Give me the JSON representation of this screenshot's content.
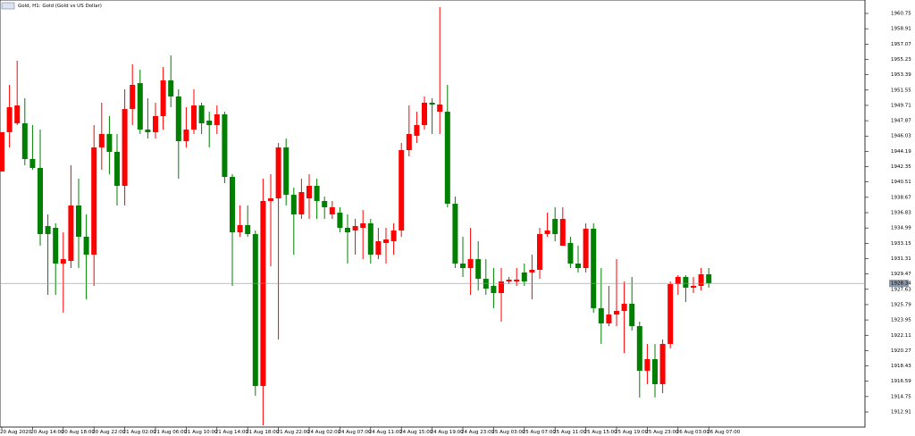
{
  "chart_data": {
    "type": "candlestick",
    "title": "Gold, H1:  Gold (Gold vs US Dollar)",
    "categories": [
      "20 Aug 2020",
      null,
      null,
      null,
      "20 Aug 14:00",
      null,
      null,
      null,
      "20 Aug 18:00",
      null,
      null,
      null,
      "20 Aug 22:00",
      null,
      null,
      null,
      "21 Aug 02:00",
      null,
      null,
      null,
      "21 Aug 06:00",
      null,
      null,
      null,
      "21 Aug 10:00",
      null,
      null,
      null,
      "21 Aug 14:00",
      null,
      null,
      null,
      "21 Aug 18:00",
      null,
      null,
      null,
      "21 Aug 22:00",
      null,
      null,
      null,
      "24 Aug 02:00",
      null,
      null,
      null,
      "24 Aug 07:00",
      null,
      null,
      null,
      "24 Aug 11:00",
      null,
      null,
      null,
      "24 Aug 15:00",
      null,
      null,
      null,
      "24 Aug 19:00",
      null,
      null,
      null,
      "24 Aug 23:00",
      null,
      null,
      null,
      "25 Aug 03:00",
      null,
      null,
      null,
      "25 Aug 07:00",
      null,
      null,
      null,
      "25 Aug 11:00",
      null,
      null,
      null,
      "25 Aug 15:00",
      null,
      null,
      null,
      "25 Aug 19:00",
      null,
      null,
      null,
      "25 Aug 23:00",
      null,
      null,
      null,
      "26 Aug 03:00",
      null,
      null,
      null,
      "26 Aug 07:00"
    ],
    "open": [
      1941.77,
      1946.49,
      1947.56,
      1947.56,
      1943.27,
      1942.2,
      1935.22,
      1935.01,
      1930.72,
      1931.04,
      1937.69,
      1933.94,
      1931.79,
      1944.66,
      1946.27,
      1944.13,
      1940.05,
      1949.27,
      1952.38,
      1946.81,
      1946.49,
      1948.42,
      1952.71,
      1950.78,
      1945.41,
      1946.81,
      1949.7,
      1947.88,
      1947.34,
      1948.63,
      1941.12,
      1934.47,
      1935.33,
      1934.26,
      1916.02,
      1938.23,
      1938.55,
      1944.66,
      1938.98,
      1936.62,
      1938.55,
      1940.05,
      1938.23,
      1936.62,
      1936.83,
      1935.01,
      1934.69,
      1935.01,
      1935.55,
      1931.79,
      1933.19,
      1933.4,
      1934.69,
      1944.34,
      1946.06,
      1947.34,
      1950.03,
      1948.95,
      1948.95,
      1937.9,
      1930.72,
      1930.18,
      1931.25,
      1928.89,
      1928.04,
      1927.18,
      1928.57,
      1928.57,
      1929.65,
      1929.65,
      1929.97,
      1934.26,
      1936.08,
      1932.86,
      1933.19,
      1930.72,
      1930.18,
      1934.9,
      1925.36,
      1923.53,
      1924.6,
      1925.03,
      1925.89,
      1923.21,
      1917.85,
      1919.24,
      1916.24,
      1921.07,
      1928.25,
      1929.11,
      1927.82,
      1928.04,
      1929.43
    ],
    "high": [
      1946.49,
      1952.17,
      1955.07,
      1950.56,
      1947.34,
      1946.81,
      1936.62,
      1935.55,
      1934.47,
      1942.52,
      1940.91,
      1936.62,
      1947.34,
      1950.03,
      1948.42,
      1946.27,
      1951.63,
      1954.64,
      1953.99,
      1950.56,
      1950.03,
      1954.32,
      1955.71,
      1951.63,
      1949.49,
      1951.63,
      1950.03,
      1948.95,
      1949.7,
      1948.95,
      1941.44,
      1937.69,
      1937.69,
      1934.69,
      1940.91,
      1941.44,
      1945.2,
      1945.74,
      1939.84,
      1940.91,
      1941.44,
      1940.91,
      1938.76,
      1938.23,
      1937.48,
      1936.62,
      1936.08,
      1937.15,
      1936.08,
      1935.01,
      1935.01,
      1935.55,
      1945.2,
      1949.7,
      1948.95,
      1950.78,
      1950.56,
      1961.5,
      1952.17,
      1938.76,
      1933.94,
      1935.01,
      1933.4,
      1931.25,
      1930.18,
      1930.18,
      1929.11,
      1930.18,
      1930.72,
      1931.79,
      1935.01,
      1936.83,
      1937.48,
      1937.48,
      1933.94,
      1932.86,
      1935.55,
      1935.55,
      1930.18,
      1928.04,
      1931.25,
      1928.57,
      1929.11,
      1923.75,
      1921.07,
      1921.07,
      1921.6,
      1928.57,
      1929.32,
      1929.32,
      1929.11,
      1930.18,
      1930.18
    ],
    "low": [
      1941.77,
      1944.66,
      1947.34,
      1942.52,
      1941.98,
      1932.86,
      1926.96,
      1926.96,
      1924.82,
      1930.18,
      1930.18,
      1926.43,
      1928.04,
      1941.98,
      1941.44,
      1937.69,
      1937.69,
      1947.34,
      1946.27,
      1945.74,
      1945.74,
      1946.81,
      1949.49,
      1940.91,
      1944.66,
      1946.27,
      1946.27,
      1944.66,
      1946.27,
      1940.37,
      1928.04,
      1933.94,
      1933.94,
      1914.85,
      1911.3,
      1930.4,
      1921.6,
      1937.69,
      1931.79,
      1936.08,
      1936.08,
      1936.08,
      1936.08,
      1936.08,
      1934.47,
      1930.72,
      1931.79,
      1931.25,
      1930.72,
      1931.25,
      1930.72,
      1931.79,
      1933.94,
      1943.59,
      1945.2,
      1946.81,
      1946.27,
      1946.27,
      1937.48,
      1930.18,
      1929.11,
      1926.96,
      1927.5,
      1926.96,
      1925.36,
      1923.75,
      1928.25,
      1928.04,
      1928.04,
      1926.43,
      1928.89,
      1933.94,
      1933.4,
      1932.86,
      1930.18,
      1929.65,
      1929.65,
      1924.82,
      1921.07,
      1923.21,
      1923.21,
      1919.99,
      1922.67,
      1914.64,
      1916.24,
      1914.64,
      1915.17,
      1920.53,
      1926.96,
      1926.11,
      1927.18,
      1927.5,
      1927.82
    ],
    "close": [
      1946.49,
      1949.49,
      1949.7,
      1943.27,
      1942.2,
      1934.26,
      1934.26,
      1930.72,
      1931.25,
      1937.69,
      1933.94,
      1931.79,
      1944.66,
      1946.27,
      1944.13,
      1940.05,
      1949.27,
      1952.17,
      1946.81,
      1946.49,
      1948.42,
      1952.71,
      1950.78,
      1945.41,
      1946.81,
      1949.7,
      1947.56,
      1947.34,
      1948.63,
      1941.12,
      1934.47,
      1935.33,
      1934.26,
      1916.02,
      1938.23,
      1938.55,
      1944.66,
      1938.98,
      1936.62,
      1939.3,
      1940.05,
      1938.23,
      1937.48,
      1937.48,
      1935.01,
      1934.47,
      1935.22,
      1935.55,
      1931.79,
      1933.4,
      1933.61,
      1934.69,
      1944.34,
      1946.27,
      1947.34,
      1950.03,
      1949.81,
      1949.81,
      1937.9,
      1930.72,
      1930.18,
      1931.25,
      1928.89,
      1927.71,
      1927.18,
      1928.57,
      1928.79,
      1928.79,
      1928.57,
      1929.97,
      1934.26,
      1934.69,
      1934.26,
      1936.08,
      1930.72,
      1930.18,
      1934.9,
      1925.36,
      1923.53,
      1924.6,
      1925.03,
      1925.89,
      1923.21,
      1917.85,
      1919.24,
      1916.24,
      1921.07,
      1928.25,
      1929.11,
      1927.82,
      1928.04,
      1929.43,
      1928.34
    ],
    "up_color": "#ff0000",
    "down_color": "#008000",
    "last_price": 1928.34,
    "ylim": [
      1911.09,
      1962.36
    ],
    "yticks": [
      1960.75,
      1958.91,
      1957.07,
      1955.23,
      1953.39,
      1951.55,
      1949.71,
      1947.87,
      1946.03,
      1944.19,
      1942.35,
      1940.51,
      1938.67,
      1936.83,
      1934.99,
      1933.15,
      1931.31,
      1929.47,
      1927.63,
      1925.79,
      1923.95,
      1922.11,
      1920.27,
      1918.43,
      1916.59,
      1914.75,
      1912.91
    ]
  }
}
